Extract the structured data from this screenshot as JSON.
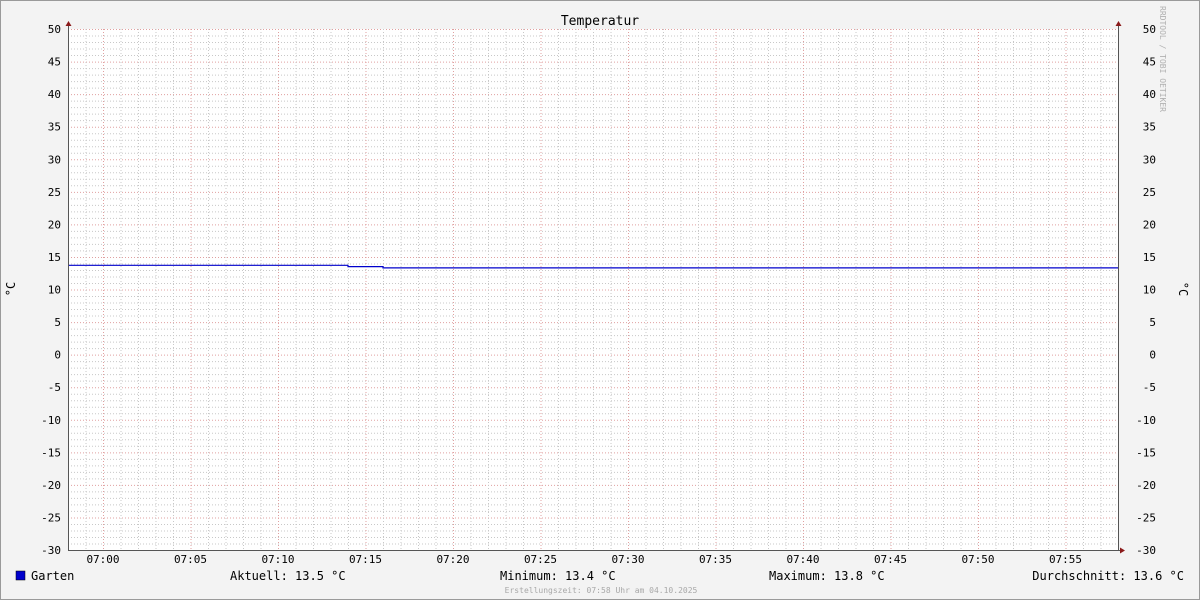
{
  "chart_data": {
    "type": "line",
    "title": "Temperatur",
    "ylabel": "°C",
    "ylabel_right": "°C",
    "ylim": [
      -30,
      50
    ],
    "yticks": [
      50,
      45,
      40,
      35,
      30,
      25,
      20,
      15,
      10,
      5,
      0,
      -5,
      -10,
      -15,
      -20,
      -25,
      -30
    ],
    "xlim": [
      "06:58",
      "07:58"
    ],
    "xticks": [
      "07:00",
      "07:05",
      "07:10",
      "07:15",
      "07:20",
      "07:25",
      "07:30",
      "07:35",
      "07:40",
      "07:45",
      "07:50",
      "07:55"
    ],
    "grid": true,
    "watermark": "RRDTOOL / TOBI OETIKER",
    "series": [
      {
        "name": "Garten",
        "color": "#0000cc",
        "points": [
          [
            "06:58",
            13.8
          ],
          [
            "07:14",
            13.8
          ],
          [
            "07:14",
            13.6
          ],
          [
            "07:16",
            13.6
          ],
          [
            "07:16",
            13.4
          ],
          [
            "07:58",
            13.4
          ]
        ]
      }
    ],
    "legend": {
      "name": "Garten",
      "current": "Aktuell: 13.5 °C",
      "minimum": "Minimum: 13.4 °C",
      "maximum": "Maximum: 13.8 °C",
      "average": "Durchschnitt: 13.6 °C"
    },
    "footer": "Erstellungszeit: 07:58 Uhr am 04.10.2025",
    "colors": {
      "major_grid": "#e0a0a0",
      "minor_grid": "#c8c8c8",
      "axis": "#555555",
      "arrow": "#8b1a1a",
      "line": "#0000cc"
    }
  }
}
